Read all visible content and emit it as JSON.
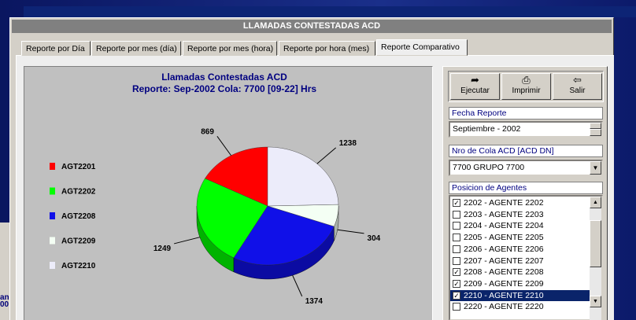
{
  "background_window": {
    "texts": [
      "anc",
      "00"
    ]
  },
  "window": {
    "title": "LLAMADAS CONTESTADAS ACD"
  },
  "tabs": {
    "items": [
      "Reporte por Día",
      "Reporte por mes (día)",
      "Reporte por mes (hora)",
      "Reporte por hora (mes)",
      "Reporte Comparativo"
    ],
    "active": 4
  },
  "chart_data": {
    "type": "pie",
    "title": "Llamadas Contestadas ACD",
    "subtitle": "Reporte: Sep-2002 Cola: 7700 [09-22] Hrs",
    "categories": [
      "AGT2201",
      "AGT2202",
      "AGT2208",
      "AGT2209",
      "AGT2210"
    ],
    "values": [
      869,
      1249,
      1374,
      304,
      1238
    ],
    "colors": [
      "#ff0000",
      "#00ff00",
      "#1010e8",
      "#f4fff4",
      "#ececfa"
    ]
  },
  "toolbar": {
    "buttons": [
      "Ejecutar",
      "Imprimir",
      "Salir"
    ]
  },
  "fecha": {
    "label": "Fecha Reporte",
    "value": "Septiembre - 2002"
  },
  "cola": {
    "label": "Nro de Cola ACD [ACD DN]",
    "value": "7700  GRUPO 7700"
  },
  "agentes": {
    "label": "Posicion de Agentes",
    "selected": 8,
    "items": [
      {
        "text": "2202 - AGENTE 2202",
        "checked": true
      },
      {
        "text": "2203 - AGENTE 2203",
        "checked": false
      },
      {
        "text": "2204 - AGENTE 2204",
        "checked": false
      },
      {
        "text": "2205 - AGENTE 2205",
        "checked": false
      },
      {
        "text": "2206 - AGENTE 2206",
        "checked": false
      },
      {
        "text": "2207 - AGENTE 2207",
        "checked": false
      },
      {
        "text": "2208 - AGENTE 2208",
        "checked": true
      },
      {
        "text": "2209 - AGENTE 2209",
        "checked": true
      },
      {
        "text": "2210 - AGENTE 2210",
        "checked": true
      },
      {
        "text": "2220 - AGENTE 2220",
        "checked": false
      }
    ]
  }
}
